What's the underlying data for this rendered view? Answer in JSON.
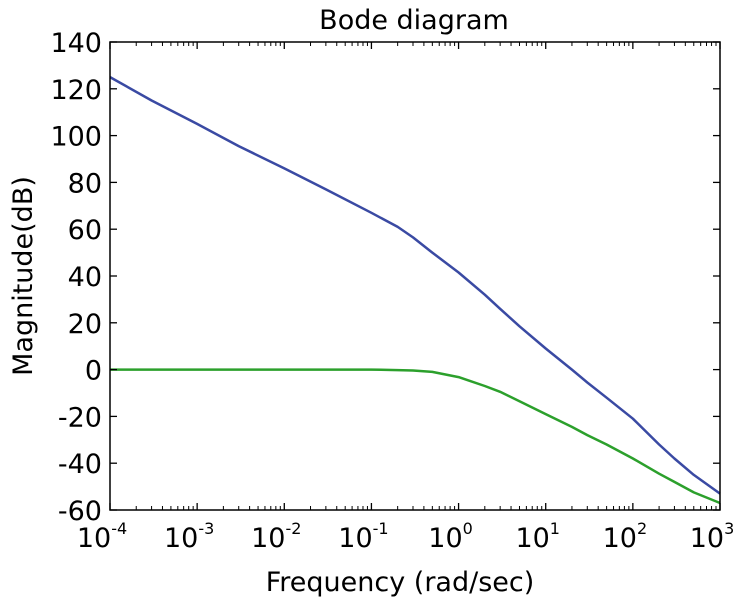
{
  "chart_data": {
    "type": "line",
    "title": "Bode diagram",
    "xlabel": "Frequency (rad/sec)",
    "ylabel": "Magnitude(dB)",
    "xscale": "log",
    "xlim": [
      0.0001,
      1000
    ],
    "ylim": [
      -60,
      140
    ],
    "grid": false,
    "x_ticks": [
      {
        "base": "10",
        "exp": "-4",
        "value": 0.0001
      },
      {
        "base": "10",
        "exp": "-3",
        "value": 0.001
      },
      {
        "base": "10",
        "exp": "-2",
        "value": 0.01
      },
      {
        "base": "10",
        "exp": "-1",
        "value": 0.1
      },
      {
        "base": "10",
        "exp": "0",
        "value": 1
      },
      {
        "base": "10",
        "exp": "1",
        "value": 10
      },
      {
        "base": "10",
        "exp": "2",
        "value": 100
      },
      {
        "base": "10",
        "exp": "3",
        "value": 1000
      }
    ],
    "y_ticks": [
      "140",
      "120",
      "100",
      "80",
      "60",
      "40",
      "20",
      "0",
      "-20",
      "-40",
      "-60"
    ],
    "series": [
      {
        "color": "#3a4aa3",
        "points": [
          [
            0.0001,
            125
          ],
          [
            0.0003,
            115
          ],
          [
            0.001,
            105
          ],
          [
            0.003,
            95.5
          ],
          [
            0.01,
            86
          ],
          [
            0.03,
            77
          ],
          [
            0.1,
            67
          ],
          [
            0.2,
            61
          ],
          [
            0.3,
            56.5
          ],
          [
            0.5,
            50
          ],
          [
            1,
            41.5
          ],
          [
            2,
            32
          ],
          [
            3,
            26
          ],
          [
            5,
            18.5
          ],
          [
            10,
            9
          ],
          [
            20,
            0
          ],
          [
            30,
            -5.5
          ],
          [
            50,
            -12
          ],
          [
            100,
            -21
          ],
          [
            200,
            -32
          ],
          [
            300,
            -38
          ],
          [
            500,
            -45
          ],
          [
            1000,
            -53
          ]
        ]
      },
      {
        "color": "#2ca02c",
        "points": [
          [
            0.0001,
            0
          ],
          [
            0.001,
            0
          ],
          [
            0.01,
            0
          ],
          [
            0.1,
            0
          ],
          [
            0.2,
            -0.2
          ],
          [
            0.3,
            -0.4
          ],
          [
            0.5,
            -1
          ],
          [
            1,
            -3.2
          ],
          [
            2,
            -7
          ],
          [
            3,
            -9.5
          ],
          [
            5,
            -13.5
          ],
          [
            10,
            -19
          ],
          [
            20,
            -24.5
          ],
          [
            30,
            -28
          ],
          [
            50,
            -32
          ],
          [
            100,
            -38
          ],
          [
            200,
            -44.5
          ],
          [
            300,
            -48
          ],
          [
            500,
            -52.5
          ],
          [
            1000,
            -57
          ]
        ]
      }
    ]
  }
}
